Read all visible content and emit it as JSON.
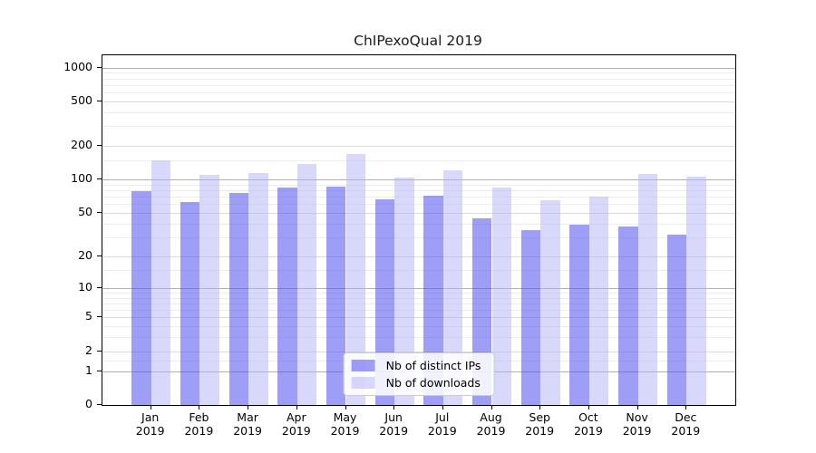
{
  "chart_data": {
    "type": "bar",
    "title": "ChIPexoQual 2019",
    "categories": [
      "Jan 2019",
      "Feb 2019",
      "Mar 2019",
      "Apr 2019",
      "May 2019",
      "Jun 2019",
      "Jul 2019",
      "Aug 2019",
      "Sep 2019",
      "Oct 2019",
      "Nov 2019",
      "Dec 2019"
    ],
    "months": [
      "Jan",
      "Feb",
      "Mar",
      "Apr",
      "May",
      "Jun",
      "Jul",
      "Aug",
      "Sep",
      "Oct",
      "Nov",
      "Dec"
    ],
    "year": "2019",
    "series": [
      {
        "name": "Nb of distinct IPs",
        "color": "#4f4fee",
        "alpha": 0.55,
        "values": [
          78,
          63,
          76,
          85,
          86,
          67,
          71,
          45,
          35,
          39,
          38,
          32
        ]
      },
      {
        "name": "Nb of downloads",
        "color": "#b1b1f5",
        "alpha": 0.5,
        "values": [
          150,
          110,
          115,
          139,
          169,
          105,
          121,
          85,
          65,
          70,
          112,
          107
        ]
      }
    ],
    "yscale": "log1p",
    "ylim": [
      0,
      1285
    ],
    "y_ticks": [
      0,
      1,
      2,
      5,
      10,
      20,
      50,
      100,
      200,
      500,
      1000
    ],
    "y_decades": [
      1,
      10,
      100,
      1000
    ],
    "y_minor": [
      1.5,
      3,
      4,
      6,
      7,
      8,
      9,
      15,
      30,
      40,
      60,
      70,
      80,
      90,
      150,
      300,
      400,
      600,
      700,
      800,
      900
    ],
    "grid": true,
    "legend_position": "lower center"
  },
  "colors": {
    "grid_major": "#b0b0b0",
    "grid_mid": "#dadada",
    "grid_minor": "#ececec",
    "spine": "#000000",
    "text": "#000000",
    "background": "#ffffff"
  }
}
